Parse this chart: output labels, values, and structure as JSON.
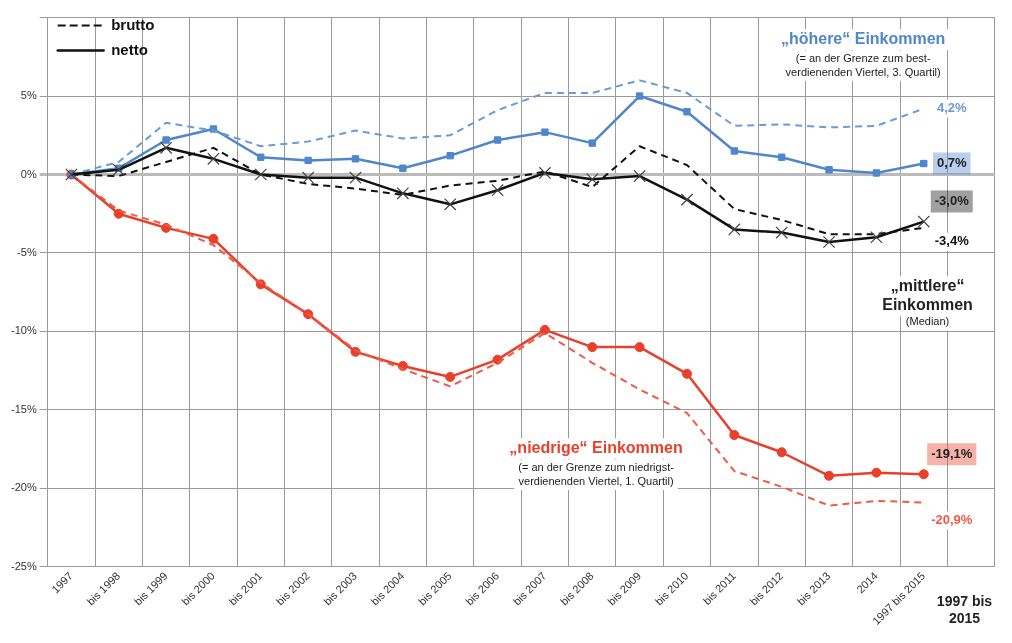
{
  "chart_data": {
    "type": "line",
    "categories": [
      "1997",
      "bis 1998",
      "bis 1999",
      "bis 2000",
      "bis 2001",
      "bis 2002",
      "bis 2003",
      "bis 2004",
      "bis 2005",
      "bis 2006",
      "bis 2007",
      "bis 2008",
      "bis 2009",
      "bis 2010",
      "bis 2011",
      "bis 2012",
      "bis 2013",
      "2014",
      "1997 bis 2015",
      null
    ],
    "series": [
      {
        "color": "#6a9bd8",
        "line_style": "dashed",
        "marker": "none",
        "values": [
          0,
          0.8,
          3.3,
          2.8,
          1.8,
          2.1,
          2.8,
          2.3,
          2.5,
          4.1,
          5.2,
          5.2,
          6.0,
          5.2,
          3.1,
          3.2,
          3.0,
          3.1,
          4.2,
          null
        ],
        "value_labels": [
          null,
          null,
          null,
          null,
          null,
          null,
          null,
          null,
          null,
          null,
          null,
          null,
          null,
          null,
          null,
          null,
          null,
          null,
          "4,2%",
          null
        ]
      },
      {
        "color": "#4f86cc",
        "line_style": "solid",
        "marker": "square",
        "values": [
          0,
          0.4,
          2.2,
          2.9,
          1.1,
          0.9,
          1.0,
          0.4,
          1.2,
          2.2,
          2.7,
          2.0,
          5.0,
          4.0,
          1.5,
          1.1,
          0.3,
          0.1,
          0.7,
          null
        ],
        "value_labels": [
          null,
          null,
          null,
          null,
          null,
          null,
          null,
          null,
          null,
          null,
          null,
          null,
          null,
          null,
          null,
          null,
          null,
          null,
          "0,7%",
          null
        ]
      },
      {
        "name": "brutto",
        "color": "#111111",
        "line_style": "dashed",
        "marker": "none",
        "values": [
          0,
          -0.1,
          0.8,
          1.7,
          0,
          -0.6,
          -0.9,
          -1.3,
          -0.7,
          -0.4,
          0.2,
          -0.8,
          1.8,
          0.6,
          -2.2,
          -2.9,
          -3.8,
          -3.8,
          -3.4,
          null
        ],
        "value_labels": [
          null,
          null,
          null,
          null,
          null,
          null,
          null,
          null,
          null,
          null,
          null,
          null,
          null,
          null,
          null,
          null,
          null,
          null,
          "-3,4%",
          null
        ]
      },
      {
        "name": "netto",
        "color": "#111111",
        "line_style": "solid",
        "marker": "cross",
        "values": [
          0,
          0.3,
          1.7,
          1.0,
          0,
          -0.2,
          -0.2,
          -1.2,
          -1.9,
          -1.0,
          0.1,
          -0.3,
          -0.1,
          -1.6,
          -3.5,
          -3.7,
          -4.3,
          -4.0,
          -3.0,
          null
        ],
        "value_labels": [
          null,
          null,
          null,
          null,
          null,
          null,
          null,
          null,
          null,
          null,
          null,
          null,
          null,
          null,
          null,
          null,
          null,
          null,
          "-3,0%",
          null
        ]
      },
      {
        "color": "#ee5a44",
        "line_style": "dashed",
        "marker": "none",
        "values": [
          0,
          -2.3,
          -3.2,
          -4.5,
          -6.9,
          -8.9,
          -11.2,
          -12.4,
          -13.5,
          -12.0,
          -10.1,
          -12.0,
          -13.7,
          -15.2,
          -18.9,
          -19.9,
          -21.1,
          -20.8,
          -20.9,
          null
        ],
        "value_labels": [
          null,
          null,
          null,
          null,
          null,
          null,
          null,
          null,
          null,
          null,
          null,
          null,
          null,
          null,
          null,
          null,
          null,
          null,
          "-20,9%",
          null
        ]
      },
      {
        "color": "#e8402a",
        "line_style": "solid",
        "marker": "circle",
        "values": [
          0,
          -2.5,
          -3.4,
          -4.1,
          -7.0,
          -8.9,
          -11.3,
          -12.2,
          -12.9,
          -11.8,
          -9.9,
          -11.0,
          -11.0,
          -12.7,
          -16.6,
          -17.7,
          -19.2,
          -19.0,
          -19.1,
          null
        ],
        "value_labels": [
          null,
          null,
          null,
          null,
          null,
          null,
          null,
          null,
          null,
          null,
          null,
          null,
          null,
          null,
          null,
          null,
          null,
          null,
          "-19,1%",
          null
        ]
      }
    ],
    "ylim": [
      -25,
      10
    ],
    "yticks": [
      {
        "value": -25,
        "label": "-25%"
      },
      {
        "value": -20,
        "label": "-20%"
      },
      {
        "value": -15,
        "label": "-15%"
      },
      {
        "value": -10,
        "label": "-10%"
      },
      {
        "value": -5,
        "label": "-5%"
      },
      {
        "value": 0,
        "label": "0%"
      },
      {
        "value": 5,
        "label": "5%"
      },
      {
        "value": 10,
        "label": null
      }
    ],
    "grid": true,
    "legend": "top left",
    "annotations": [
      "„höhere“ Einkommen",
      "(= an der Grenze zum best-\nverdienenden Viertel, 3. Quartil)",
      "„mittlere“\nEinkommen",
      "(Median)",
      "„niedrige“ Einkommen",
      "(= an der Grenze zum niedrigst-\nverdienenden Viertel, 1. Quartil)",
      "1997 bis\n2015"
    ]
  }
}
